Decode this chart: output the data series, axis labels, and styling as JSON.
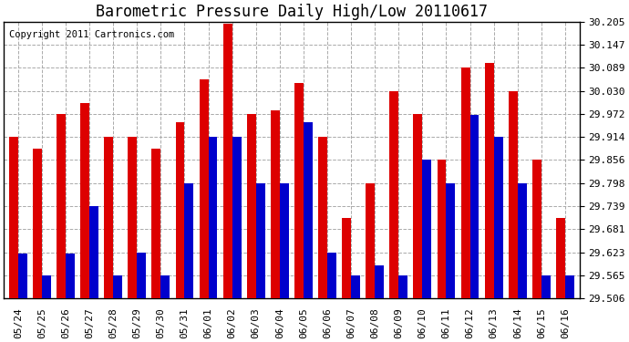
{
  "title": "Barometric Pressure Daily High/Low 20110617",
  "copyright": "Copyright 2011 Cartronics.com",
  "dates": [
    "05/24",
    "05/25",
    "05/26",
    "05/27",
    "05/28",
    "05/29",
    "05/30",
    "05/31",
    "06/01",
    "06/02",
    "06/03",
    "06/04",
    "06/05",
    "06/06",
    "06/07",
    "06/08",
    "06/09",
    "06/10",
    "06/11",
    "06/12",
    "06/13",
    "06/14",
    "06/15",
    "06/16"
  ],
  "highs": [
    29.914,
    29.884,
    29.972,
    30.0,
    29.914,
    29.914,
    29.884,
    29.95,
    30.06,
    30.2,
    29.972,
    29.98,
    30.05,
    29.914,
    29.71,
    29.798,
    30.03,
    29.972,
    29.856,
    30.089,
    30.1,
    30.03,
    29.856,
    29.71
  ],
  "lows": [
    29.62,
    29.565,
    29.62,
    29.74,
    29.565,
    29.623,
    29.565,
    29.798,
    29.914,
    29.914,
    29.798,
    29.798,
    29.95,
    29.623,
    29.565,
    29.59,
    29.565,
    29.856,
    29.798,
    29.97,
    29.914,
    29.798,
    29.565,
    29.565
  ],
  "ymin": 29.506,
  "ymax": 30.205,
  "yticks": [
    29.506,
    29.565,
    29.623,
    29.681,
    29.739,
    29.798,
    29.856,
    29.914,
    29.972,
    30.03,
    30.089,
    30.147,
    30.205
  ],
  "high_color": "#dd0000",
  "low_color": "#0000cc",
  "bg_color": "#ffffff",
  "plot_bg_color": "#ffffff",
  "grid_color": "#aaaaaa",
  "title_fontsize": 12,
  "copyright_fontsize": 7.5,
  "tick_fontsize": 8
}
